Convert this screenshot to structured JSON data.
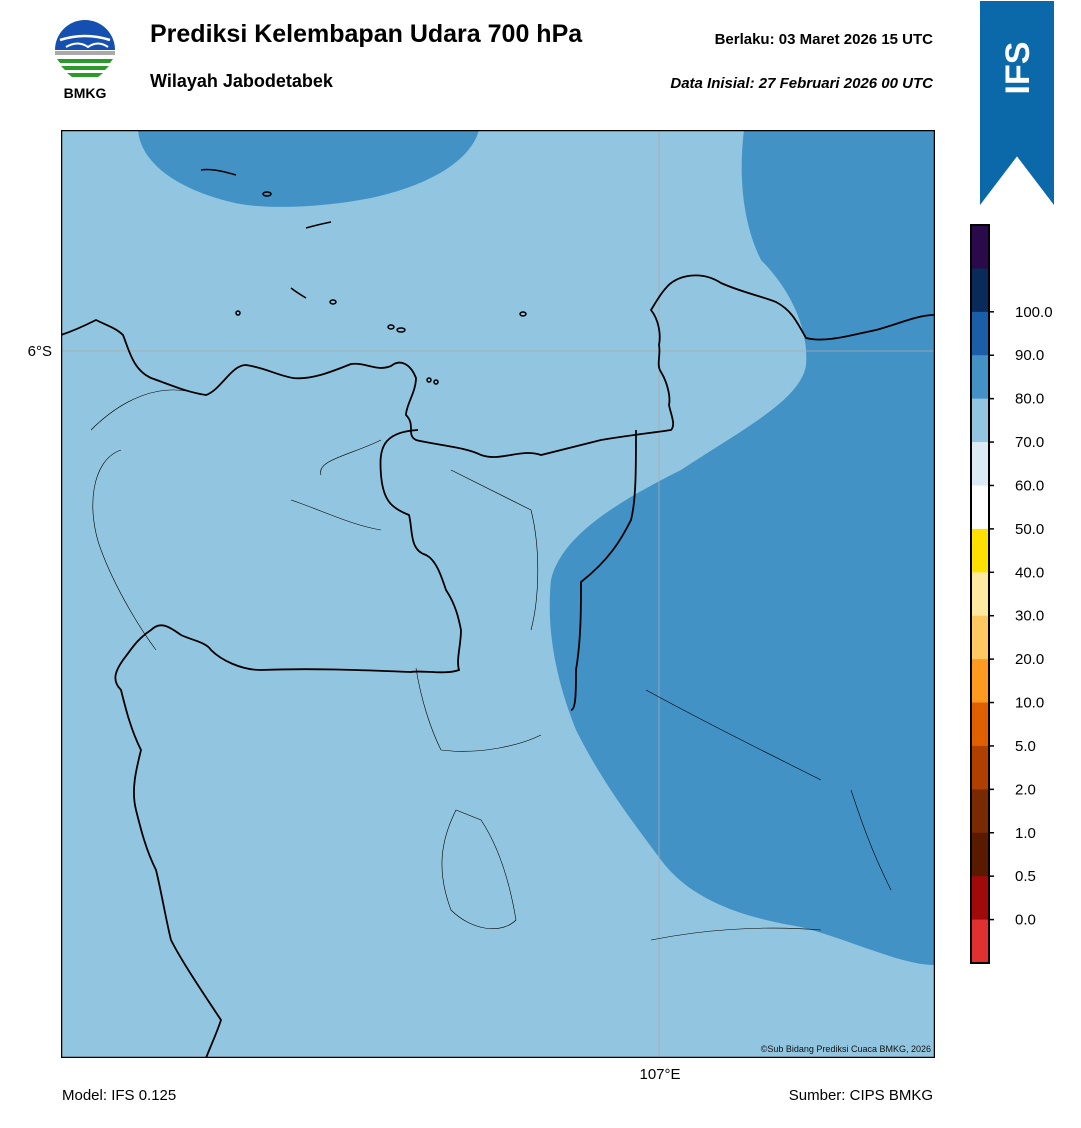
{
  "header": {
    "title": "Prediksi Kelembapan Udara 700 hPa",
    "subtitle": "Wilayah Jabodetabek",
    "valid_label": "Berlaku:  03 Maret 2026 15 UTC",
    "init_label": "Data Inisial:  27 Februari 2026 00 UTC"
  },
  "logo": {
    "text": "BMKG"
  },
  "badge": {
    "text": "IFS",
    "color": "#0b69aa"
  },
  "map": {
    "lat_label": "6°S",
    "lon_label": "107°E",
    "copyright": "©Sub Bidang Prediksi Cuaca BMKG, 2026",
    "fill_light": "#92c5df",
    "fill_dark": "#4292c6"
  },
  "footer": {
    "model": "Model: IFS 0.125",
    "source": "Sumber: CIPS BMKG"
  },
  "legend": {
    "ticks": [
      "100.0",
      "90.0",
      "80.0",
      "70.0",
      "60.0",
      "50.0",
      "40.0",
      "30.0",
      "20.0",
      "10.0",
      "5.0",
      "2.0",
      "1.0",
      "0.5",
      "0.0"
    ],
    "colors": [
      "#2a0a4a",
      "#0a2a5a",
      "#1b5ea8",
      "#4292c6",
      "#92c5df",
      "#dceaf4",
      "#ffffff",
      "#ffe000",
      "#ffe8a0",
      "#ffc860",
      "#ff9a20",
      "#e06000",
      "#b04000",
      "#7a2a00",
      "#5a1a00",
      "#a00a0a",
      "#e03030"
    ]
  }
}
